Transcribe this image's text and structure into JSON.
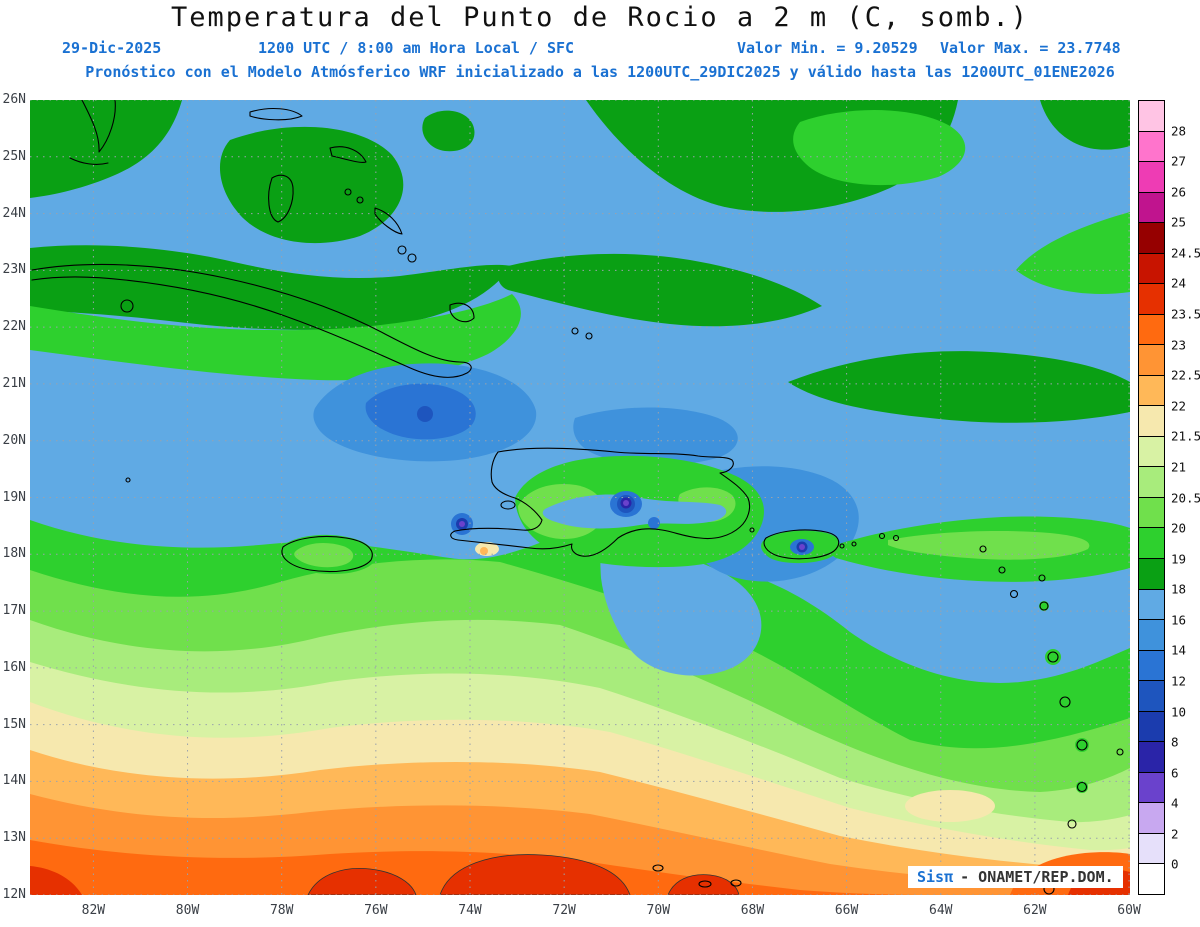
{
  "header": {
    "title": "Temperatura del Punto de Rocio a 2 m (C, somb.)",
    "date": "29-Dic-2025",
    "time": "1200 UTC / 8:00 am Hora Local / SFC",
    "min_label": "Valor Min. = 9.20529",
    "max_label": "Valor Max. = 23.7748",
    "forecast_line": "Pronóstico con el Modelo Atmósferico WRF inicializado a las 1200UTC_29DIC2025 y válido hasta las  1200UTC_01ENE2026"
  },
  "colors": {
    "header_blue": "#1a71d2",
    "grid_gray": "#9aa2ac",
    "coastline": "#000000"
  },
  "map": {
    "lat_labels": [
      "26N",
      "25N",
      "24N",
      "23N",
      "22N",
      "21N",
      "20N",
      "19N",
      "18N",
      "17N",
      "16N",
      "15N",
      "14N",
      "13N",
      "12N"
    ],
    "lon_labels": [
      "82W",
      "80W",
      "78W",
      "76W",
      "74W",
      "72W",
      "70W",
      "68W",
      "66W",
      "64W",
      "62W",
      "60W"
    ],
    "watermark": {
      "brand": "Sisπ",
      "org": "- ONAMET/REP.DOM."
    }
  },
  "legend": {
    "values": [
      "28",
      "27",
      "26",
      "25",
      "24.5",
      "24",
      "23.5",
      "23",
      "22.5",
      "22",
      "21.5",
      "21",
      "20.5",
      "20",
      "19",
      "18",
      "16",
      "14",
      "12",
      "10",
      "8",
      "6",
      "4",
      "2",
      "0"
    ],
    "bands": [
      {
        "name": "gt28",
        "color": "#ffc4e4"
      },
      {
        "name": "27-28",
        "color": "#ff74cc"
      },
      {
        "name": "26-27",
        "color": "#ee3cb4"
      },
      {
        "name": "25-26",
        "color": "#c0148e"
      },
      {
        "name": "24.5-25",
        "color": "#960000"
      },
      {
        "name": "24-24.5",
        "color": "#c81400"
      },
      {
        "name": "23.5-24",
        "color": "#e63000"
      },
      {
        "name": "23-23.5",
        "color": "#ff6a10"
      },
      {
        "name": "22.5-23",
        "color": "#ff9434"
      },
      {
        "name": "22-22.5",
        "color": "#ffb858"
      },
      {
        "name": "21.5-22",
        "color": "#f6e8ae"
      },
      {
        "name": "21-21.5",
        "color": "#d8f2a4"
      },
      {
        "name": "20.5-21",
        "color": "#a8ec7c"
      },
      {
        "name": "20-20.5",
        "color": "#70e04c"
      },
      {
        "name": "19-20",
        "color": "#2ed02e"
      },
      {
        "name": "18-19",
        "color": "#0aa014"
      },
      {
        "name": "16-18",
        "color": "#60aae4"
      },
      {
        "name": "14-16",
        "color": "#3f92dc"
      },
      {
        "name": "12-14",
        "color": "#2a74d4"
      },
      {
        "name": "10-12",
        "color": "#1e55be"
      },
      {
        "name": "8-10",
        "color": "#1b3cae"
      },
      {
        "name": "6-8",
        "color": "#2a24a8"
      },
      {
        "name": "4-6",
        "color": "#6a42cc"
      },
      {
        "name": "2-4",
        "color": "#c8a8f0"
      },
      {
        "name": "0-2",
        "color": "#e6e0fa"
      },
      {
        "name": "lt0",
        "color": "#ffffff"
      }
    ]
  },
  "chart_data": {
    "type": "heatmap",
    "variable": "Temperatura del Punto de Rocio a 2 m (C, somb.)",
    "model": "WRF",
    "init": "1200UTC_29DIC2025",
    "valid_until": "1200UTC_01ENE2026",
    "value_min": 9.20529,
    "value_max": 23.7748,
    "lon_range_deg_w": [
      83.3,
      60
    ],
    "lat_range_deg_n": [
      12,
      26
    ],
    "contour_levels": [
      0,
      2,
      4,
      6,
      8,
      10,
      12,
      14,
      16,
      18,
      19,
      20,
      20.5,
      21,
      21.5,
      22,
      22.5,
      23,
      23.5,
      24,
      24.5,
      25,
      26,
      27,
      28
    ],
    "notes": "Dew point shaded contours over the Caribbean: blues (14-18C) across the north, dark/light greens over Cuba, Hispaniola, Jamaica and Puerto Rico, purple cold cores over mountain peaks of Hispaniola and Puerto Rico, warm oranges and reds (22-24C) across the southern Caribbean toward 12N"
  }
}
